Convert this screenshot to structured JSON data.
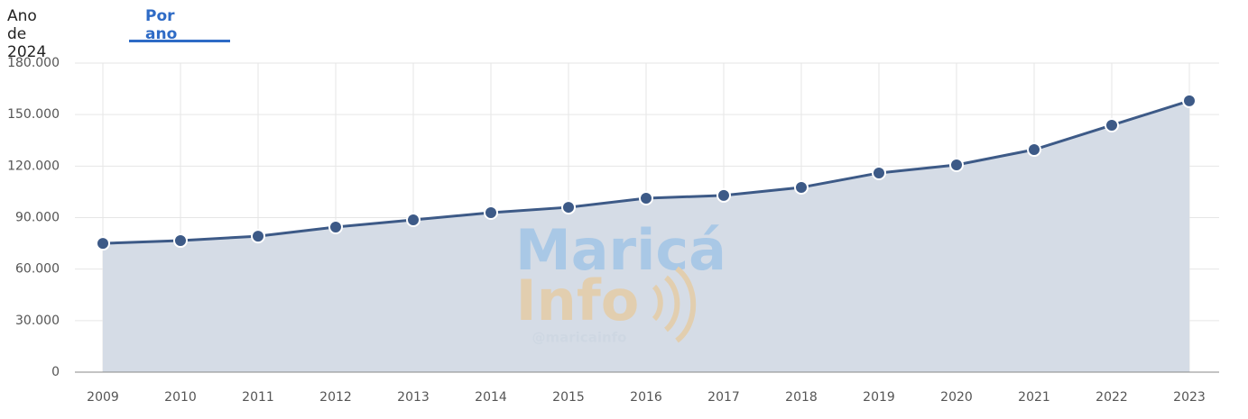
{
  "tabs": [
    {
      "label": "Ano de 2024",
      "active": false
    },
    {
      "label": "Por ano",
      "active": true
    }
  ],
  "watermark": {
    "line1": "Maricá",
    "line2": "Info",
    "handle": "@maricainfo"
  },
  "chart_data": {
    "type": "area",
    "categories": [
      "2009",
      "2010",
      "2011",
      "2012",
      "2013",
      "2014",
      "2015",
      "2016",
      "2017",
      "2018",
      "2019",
      "2020",
      "2021",
      "2022",
      "2023"
    ],
    "series": [
      {
        "color": "#3d5a87",
        "fill": "#d5dce6",
        "values": [
          75000,
          76600,
          79200,
          84500,
          88700,
          92900,
          96000,
          101300,
          102900,
          107600,
          116000,
          120700,
          129600,
          143800,
          158000
        ]
      }
    ],
    "ylim": [
      0,
      180000
    ],
    "yticks": [
      0,
      {
        "value": 30000,
        "label": "30.000"
      },
      {
        "value": 60000,
        "label": "60.000"
      },
      {
        "value": 90000,
        "label": "90.000"
      },
      {
        "value": 120000,
        "label": "120.000"
      },
      {
        "value": 150000,
        "label": "150.000"
      },
      {
        "value": 180000,
        "label": "180.000"
      }
    ],
    "grid": true
  }
}
